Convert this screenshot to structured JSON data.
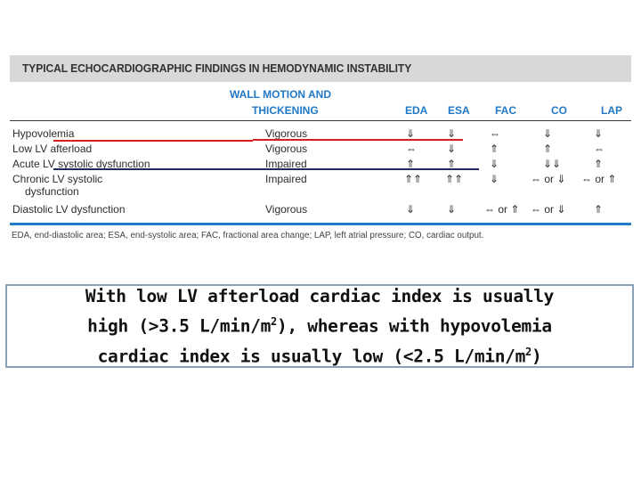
{
  "table": {
    "title": "TYPICAL ECHOCARDIOGRAPHIC FINDINGS IN HEMODYNAMIC INSTABILITY",
    "headers": {
      "wall_motion_line1": "WALL MOTION AND",
      "wall_motion_line2": "THICKENING",
      "eda": "EDA",
      "esa": "ESA",
      "fac": "FAC",
      "co": "CO",
      "lap": "LAP"
    },
    "rows": [
      {
        "label": "Hypovolemia",
        "label2": "",
        "wall": "Vigorous",
        "eda": "⇓",
        "esa": "⇓",
        "fac": "⇔",
        "co": "⇓",
        "lap": "⇓"
      },
      {
        "label": "Low LV afterload",
        "label2": "",
        "wall": "Vigorous",
        "eda": "⇔",
        "esa": "⇓",
        "fac": "⇑",
        "co": "⇑",
        "lap": "⇔"
      },
      {
        "label": "Acute LV systolic dysfunction",
        "label2": "",
        "wall": "Impaired",
        "eda": "⇑",
        "esa": "⇑",
        "fac": "⇓",
        "co": "⇓⇓",
        "lap": "⇑"
      },
      {
        "label": "Chronic LV systolic",
        "label2": "dysfunction",
        "wall": "Impaired",
        "eda": "⇑⇑",
        "esa": "⇑⇑",
        "fac": "⇓",
        "co": "⇔ or ⇓",
        "lap": "⇔ or ⇑"
      },
      {
        "label": "Diastolic LV dysfunction",
        "label2": "",
        "wall": "Vigorous",
        "eda": "⇓",
        "esa": "⇓",
        "fac": "⇔ or ⇑",
        "co": "⇔ or ⇓",
        "lap": "⇑"
      }
    ],
    "footnote": "EDA, end-diastolic area; ESA, end-systolic area; FAC, fractional area change; LAP, left atrial pressure; CO, cardiac output.",
    "colors": {
      "header_blue": "#2178c6",
      "highlight_red": "#d42020",
      "highlight_navy": "#1f2a5c"
    }
  },
  "callout": {
    "line1": "With low LV afterload cardiac index is usually",
    "line2_pre": "high (>3.5 L/min/m",
    "line2_sup": "2",
    "line2_post": "), whereas with hypovolemia",
    "line3_pre": "cardiac index is usually low (<2.5 L/min/m",
    "line3_sup": "2",
    "line3_post": ")"
  }
}
